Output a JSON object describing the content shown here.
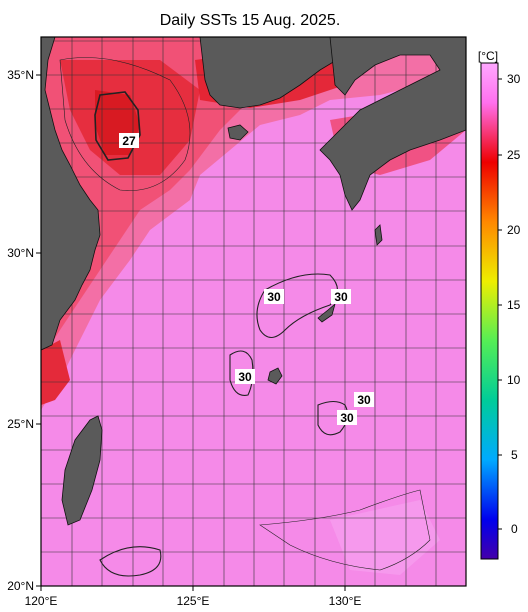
{
  "title": "Daily SSTs 15 Aug. 2025.",
  "colorbar": {
    "unit": "[°C]",
    "ticks": [
      "30",
      "25",
      "20",
      "15",
      "10",
      "5",
      "0"
    ],
    "stops": [
      "#ff90ff",
      "#ee0000",
      "#ff8800",
      "#eeee00",
      "#00cc00",
      "#00cccc",
      "#0000ff",
      "#4400aa"
    ]
  },
  "map": {
    "lat_labels": [
      "35°N",
      "30°N",
      "25°N",
      "20°N"
    ],
    "lon_labels": [
      "120°E",
      "125°E",
      "130°E"
    ],
    "land_color": "#5a5a5a",
    "sea_color": "#f58ae8"
  },
  "isotherm_labels": [
    "27",
    "30",
    "30",
    "30",
    "30",
    "30"
  ]
}
